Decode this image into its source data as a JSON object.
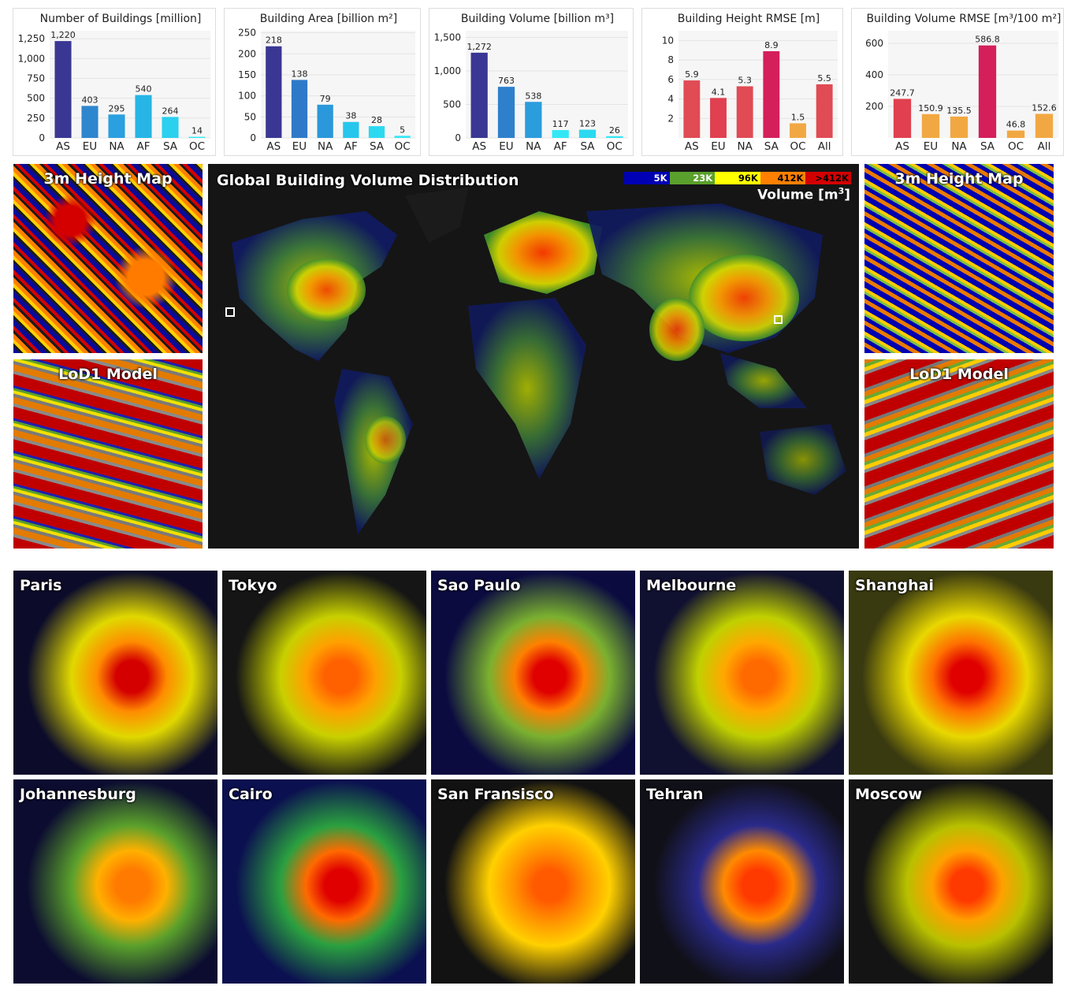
{
  "chart_data": [
    {
      "type": "bar",
      "title": "Number of Buildings [million]",
      "categories": [
        "AS",
        "EU",
        "NA",
        "AF",
        "SA",
        "OC"
      ],
      "values": [
        1220,
        403,
        295,
        540,
        264,
        14
      ],
      "value_labels": [
        "1,220",
        "403",
        "295",
        "540",
        "264",
        "14"
      ],
      "ylim": [
        0,
        1350
      ],
      "yticks": [
        0,
        250,
        500,
        750,
        1000,
        1250
      ],
      "ytick_labels": [
        "0",
        "250",
        "500",
        "750",
        "1,000",
        "1,250"
      ],
      "colors": [
        "#3a3794",
        "#2e86cf",
        "#2aa0e0",
        "#27b5e6",
        "#2bd0ef",
        "#33e8f5"
      ]
    },
    {
      "type": "bar",
      "title": "Building Area [billion m²]",
      "categories": [
        "AS",
        "EU",
        "NA",
        "AF",
        "SA",
        "OC"
      ],
      "values": [
        218,
        138,
        79,
        38,
        28,
        5
      ],
      "value_labels": [
        "218",
        "138",
        "79",
        "38",
        "28",
        "5"
      ],
      "ylim": [
        0,
        255
      ],
      "yticks": [
        0,
        50,
        100,
        150,
        200,
        250
      ],
      "ytick_labels": [
        "0",
        "50",
        "100",
        "150",
        "200",
        "250"
      ],
      "colors": [
        "#3a3794",
        "#2e7ac8",
        "#2a98da",
        "#27c6ec",
        "#2bdaf0",
        "#33e8f5"
      ]
    },
    {
      "type": "bar",
      "title": "Building Volume [billion m³]",
      "categories": [
        "AS",
        "EU",
        "NA",
        "AF",
        "SA",
        "OC"
      ],
      "values": [
        1272,
        763,
        538,
        117,
        123,
        26
      ],
      "value_labels": [
        "1,272",
        "763",
        "538",
        "117",
        "123",
        "26"
      ],
      "ylim": [
        0,
        1600
      ],
      "yticks": [
        0,
        500,
        1000,
        1500
      ],
      "ytick_labels": [
        "0",
        "500",
        "1,000",
        "1,500"
      ],
      "colors": [
        "#3a3794",
        "#2e80cc",
        "#2a9ddd",
        "#33e8f5",
        "#2bd9f0",
        "#33e8f5"
      ]
    },
    {
      "type": "bar",
      "title": "Building Height RMSE [m]",
      "categories": [
        "AS",
        "EU",
        "NA",
        "SA",
        "OC",
        "All"
      ],
      "values": [
        5.9,
        4.1,
        5.3,
        8.9,
        1.5,
        5.5
      ],
      "value_labels": [
        "5.9",
        "4.1",
        "5.3",
        "8.9",
        "1.5",
        "5.5"
      ],
      "ylim": [
        0,
        11
      ],
      "yticks": [
        2,
        4,
        6,
        8,
        10
      ],
      "ytick_labels": [
        "2",
        "4",
        "6",
        "8",
        "10"
      ],
      "colors": [
        "#e04b54",
        "#e0404f",
        "#e04b54",
        "#d41f5a",
        "#f2a842",
        "#e04b54"
      ]
    },
    {
      "type": "bar",
      "title": "Building Volume RMSE [m³/100 m²]",
      "categories": [
        "AS",
        "EU",
        "NA",
        "SA",
        "OC",
        "All"
      ],
      "values": [
        247.7,
        150.9,
        135.5,
        586.8,
        46.8,
        152.6
      ],
      "value_labels": [
        "247.7",
        "150.9",
        "135.5",
        "586.8",
        "46.8",
        "152.6"
      ],
      "ylim": [
        0,
        680
      ],
      "yticks": [
        200,
        400,
        600
      ],
      "ytick_labels": [
        "200",
        "400",
        "600"
      ],
      "colors": [
        "#e0404f",
        "#f2a842",
        "#f2a842",
        "#d41f5a",
        "#f2a842",
        "#f2a842"
      ]
    }
  ],
  "map": {
    "title": "Global Building Volume Distribution",
    "legend_title": "Volume [m",
    "legend_title_sup": "3",
    "legend_title_end": "]",
    "legend": [
      {
        "label": "5K",
        "color": "#0000b4",
        "text": "#ffffff"
      },
      {
        "label": "23K",
        "color": "#5aa02c",
        "text": "#ffffff"
      },
      {
        "label": "96K",
        "color": "#ffff00",
        "text": "#000000"
      },
      {
        "label": "412K",
        "color": "#ff8000",
        "text": "#000000"
      },
      {
        "label": ">412K",
        "color": "#d40000",
        "text": "#000000"
      }
    ]
  },
  "side_panels": {
    "height_map": "3m Height Map",
    "lod_model": "LoD1 Model"
  },
  "cities": [
    "Paris",
    "Tokyo",
    "Sao Paulo",
    "Melbourne",
    "Shanghai",
    "Johannesburg",
    "Cairo",
    "San Fransisco",
    "Tehran",
    "Moscow"
  ]
}
